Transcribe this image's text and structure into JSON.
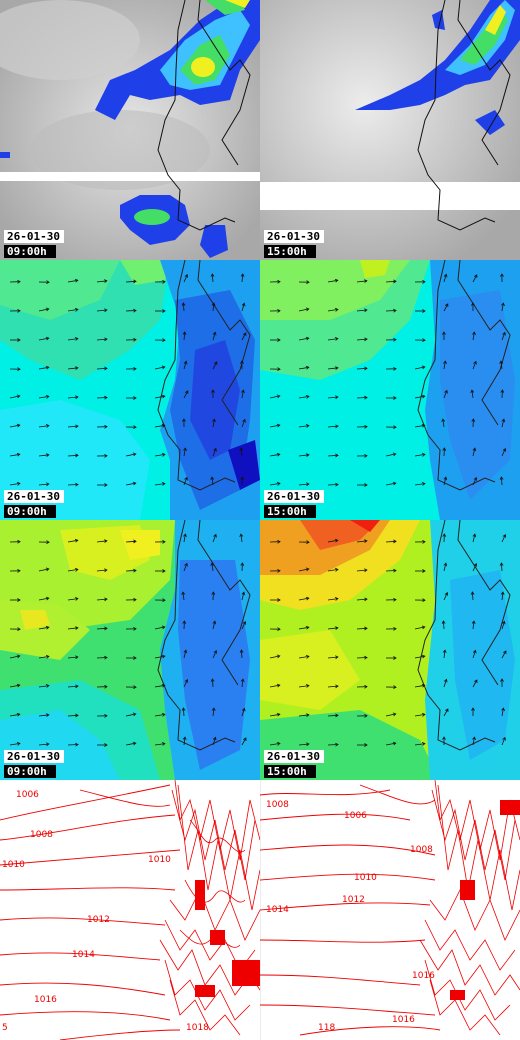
{
  "panels": [
    {
      "id": "cloud-0900",
      "type": "cloud",
      "date": "26-01-30",
      "hour": "09:00h"
    },
    {
      "id": "cloud-1500",
      "type": "cloud",
      "date": "26-01-30",
      "hour": "15:00h"
    },
    {
      "id": "field1-0900",
      "type": "field-blue",
      "date": "26-01-30",
      "hour": "09:00h"
    },
    {
      "id": "field1-1500",
      "type": "field-blue",
      "date": "26-01-30",
      "hour": "15:00h"
    },
    {
      "id": "field2-0900",
      "type": "field-green",
      "date": "26-01-30",
      "hour": "09:00h"
    },
    {
      "id": "field2-1500",
      "type": "field-green",
      "date": "26-01-30",
      "hour": "15:00h"
    },
    {
      "id": "pressure-0900",
      "type": "isobars"
    },
    {
      "id": "pressure-1500",
      "type": "isobars"
    }
  ],
  "isobar_labels": {
    "left": [
      "1006",
      "1008",
      "1010",
      "1010",
      "1012",
      "1014",
      "1016",
      "1018",
      "5"
    ],
    "right": [
      "1008",
      "1006",
      "1008",
      "1010",
      "1012",
      "1014",
      "1016",
      "1016",
      "118"
    ]
  },
  "colors": {
    "isobar": "#ee0000",
    "coast": "#111111",
    "cloud_bg": "#b4b4b4",
    "precip_blue": "#1f3fe8",
    "precip_green": "#44dd66",
    "precip_yellow": "#f0f020"
  }
}
